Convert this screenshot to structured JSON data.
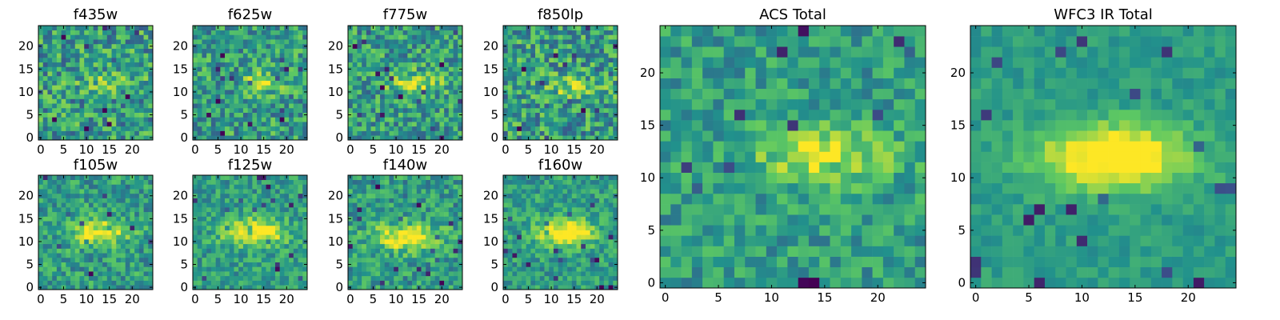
{
  "colormap": [
    "#440154",
    "#3b528b",
    "#21918c",
    "#5ec962",
    "#fde725"
  ],
  "chart_data": [
    {
      "type": "heatmap",
      "title": "f435w",
      "grid_size": 25,
      "source_offset": [
        15,
        12
      ],
      "source_strength": 0.2,
      "source_width": [
        4,
        1.6
      ],
      "noise": 0.55,
      "seed": 11,
      "xticks": [
        0,
        5,
        10,
        15,
        20
      ],
      "yticks": [
        0,
        5,
        10,
        15,
        20
      ],
      "xlim": [
        0,
        24
      ],
      "ylim": [
        0,
        24
      ]
    },
    {
      "type": "heatmap",
      "title": "f625w",
      "grid_size": 25,
      "source_offset": [
        15,
        12
      ],
      "source_strength": 0.35,
      "source_width": [
        3,
        1.5
      ],
      "noise": 0.5,
      "seed": 23,
      "xticks": [
        0,
        5,
        10,
        15,
        20
      ],
      "yticks": [
        0,
        5,
        10,
        15,
        20
      ],
      "xlim": [
        0,
        24
      ],
      "ylim": [
        0,
        24
      ]
    },
    {
      "type": "heatmap",
      "title": "f775w",
      "grid_size": 25,
      "source_offset": [
        14,
        12
      ],
      "source_strength": 0.35,
      "source_width": [
        4,
        1.6
      ],
      "noise": 0.5,
      "seed": 37,
      "xticks": [
        0,
        5,
        10,
        15,
        20
      ],
      "yticks": [
        0,
        5,
        10,
        15,
        20
      ],
      "xlim": [
        0,
        24
      ],
      "ylim": [
        0,
        24
      ]
    },
    {
      "type": "heatmap",
      "title": "f850lp",
      "grid_size": 25,
      "source_offset": [
        15,
        11
      ],
      "source_strength": 0.25,
      "source_width": [
        4,
        1.6
      ],
      "noise": 0.55,
      "seed": 41,
      "xticks": [
        0,
        5,
        10,
        15,
        20
      ],
      "yticks": [
        0,
        5,
        10,
        15,
        20
      ],
      "xlim": [
        0,
        24
      ],
      "ylim": [
        0,
        24
      ]
    },
    {
      "type": "heatmap",
      "title": "f105w",
      "grid_size": 25,
      "source_offset": [
        13,
        12
      ],
      "source_strength": 0.45,
      "source_width": [
        4.5,
        2
      ],
      "noise": 0.4,
      "seed": 53,
      "xticks": [
        0,
        5,
        10,
        15,
        20
      ],
      "yticks": [
        0,
        5,
        10,
        15,
        20
      ],
      "xlim": [
        0,
        24
      ],
      "ylim": [
        0,
        24
      ]
    },
    {
      "type": "heatmap",
      "title": "f125w",
      "grid_size": 25,
      "source_offset": [
        13,
        12
      ],
      "source_strength": 0.55,
      "source_width": [
        4.5,
        2
      ],
      "noise": 0.35,
      "seed": 61,
      "xticks": [
        0,
        5,
        10,
        15,
        20
      ],
      "yticks": [
        0,
        5,
        10,
        15,
        20
      ],
      "xlim": [
        0,
        24
      ],
      "ylim": [
        0,
        24
      ]
    },
    {
      "type": "heatmap",
      "title": "f140w",
      "grid_size": 25,
      "source_offset": [
        12,
        11
      ],
      "source_strength": 0.45,
      "source_width": [
        5,
        2
      ],
      "noise": 0.4,
      "seed": 71,
      "xticks": [
        0,
        5,
        10,
        15,
        20
      ],
      "yticks": [
        0,
        5,
        10,
        15,
        20
      ],
      "xlim": [
        0,
        24
      ],
      "ylim": [
        0,
        24
      ]
    },
    {
      "type": "heatmap",
      "title": "f160w",
      "grid_size": 25,
      "source_offset": [
        13,
        12
      ],
      "source_strength": 0.55,
      "source_width": [
        4.5,
        2
      ],
      "noise": 0.35,
      "seed": 83,
      "xticks": [
        0,
        5,
        10,
        15,
        20
      ],
      "yticks": [
        0,
        5,
        10,
        15,
        20
      ],
      "xlim": [
        0,
        24
      ],
      "ylim": [
        0,
        24
      ]
    },
    {
      "type": "heatmap",
      "title": "ACS Total",
      "grid_size": 25,
      "source_offset": [
        15,
        12
      ],
      "source_strength": 0.4,
      "source_width": [
        4.5,
        1.8
      ],
      "noise": 0.35,
      "seed": 97,
      "xticks": [
        0,
        5,
        10,
        15,
        20
      ],
      "yticks": [
        0,
        5,
        10,
        15,
        20
      ],
      "xlim": [
        0,
        24
      ],
      "ylim": [
        0,
        24
      ]
    },
    {
      "type": "heatmap",
      "title": "WFC3 IR Total",
      "grid_size": 25,
      "source_offset": [
        13,
        12
      ],
      "source_strength": 0.6,
      "source_width": [
        5,
        2.2
      ],
      "noise": 0.18,
      "seed": 101,
      "xticks": [
        0,
        5,
        10,
        15,
        20
      ],
      "yticks": [
        0,
        5,
        10,
        15,
        20
      ],
      "xlim": [
        0,
        24
      ],
      "ylim": [
        0,
        24
      ]
    }
  ]
}
